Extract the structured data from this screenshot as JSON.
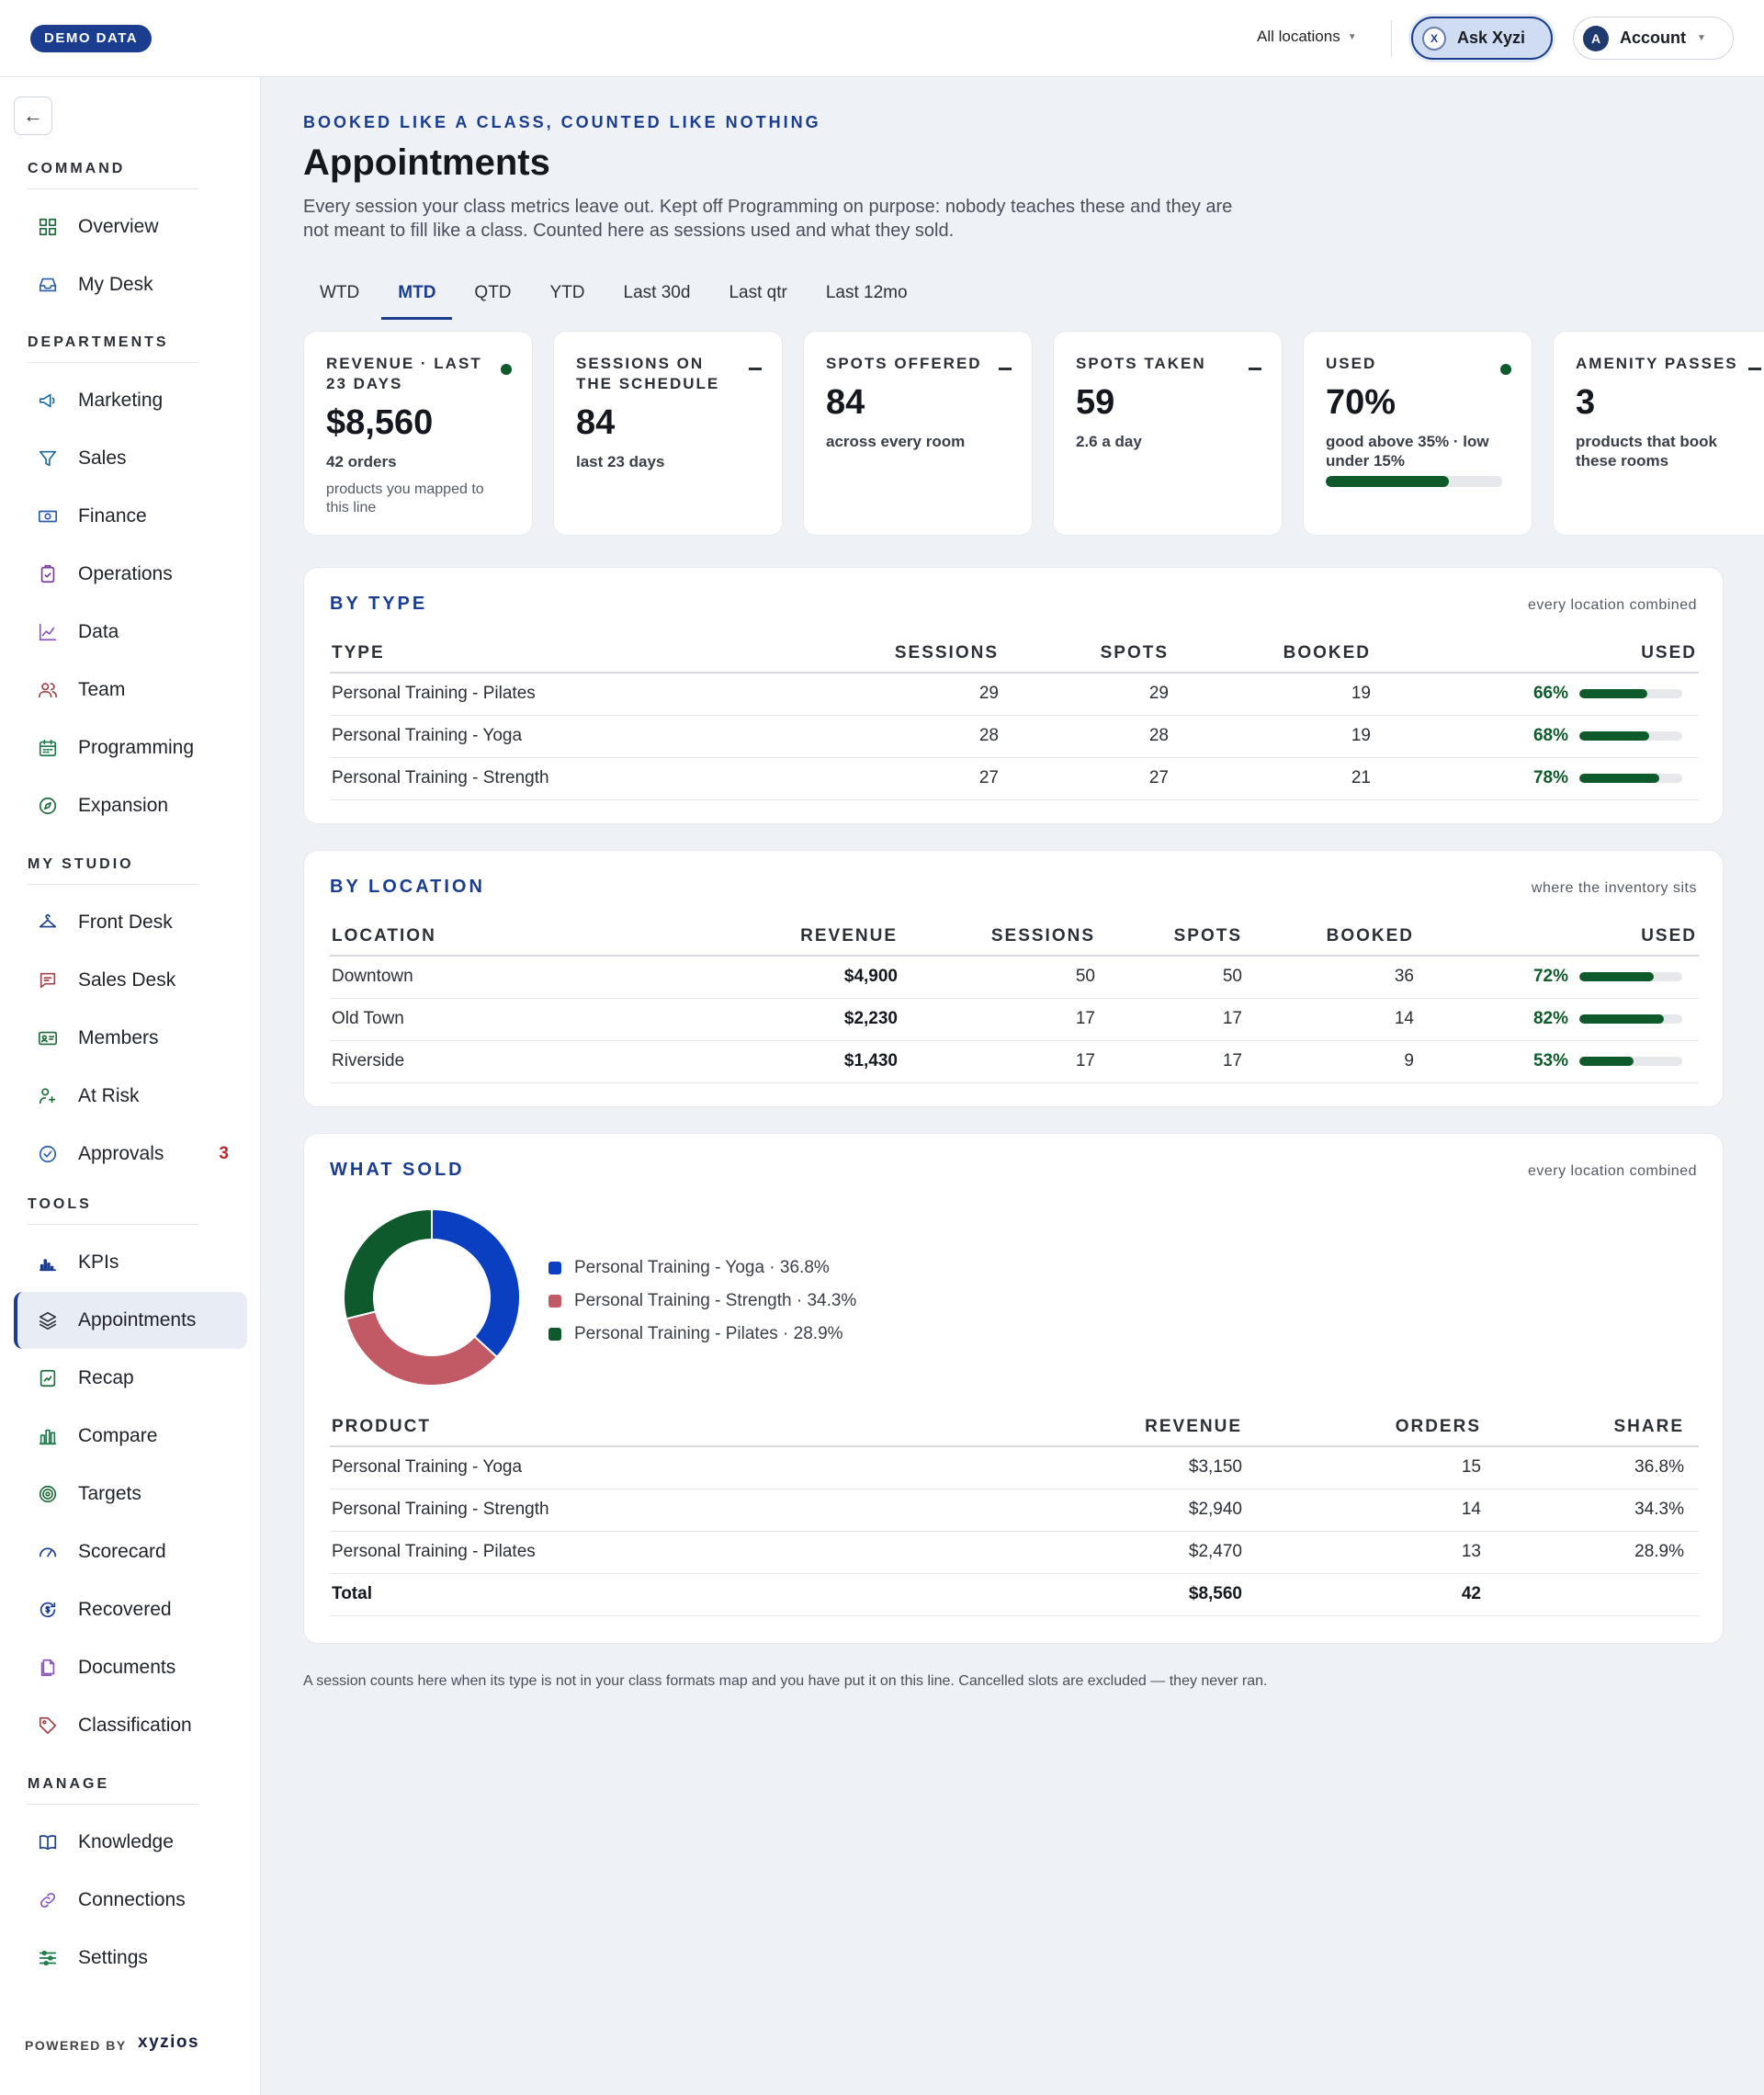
{
  "topbar": {
    "demo_badge": "DEMO DATA",
    "location_select": "All locations",
    "ask_label": "Ask Xyzi",
    "ask_icon_letter": "X",
    "account_label": "Account",
    "account_initial": "A"
  },
  "sidebar": {
    "collapse_icon": "arrow-left-icon",
    "sections": [
      {
        "label": "COMMAND",
        "items": [
          {
            "label": "Overview",
            "icon": "grid-icon"
          },
          {
            "label": "My Desk",
            "icon": "inbox-icon"
          }
        ]
      },
      {
        "label": "DEPARTMENTS",
        "items": [
          {
            "label": "Marketing",
            "icon": "megaphone-icon"
          },
          {
            "label": "Sales",
            "icon": "filter-icon"
          },
          {
            "label": "Finance",
            "icon": "cash-icon"
          },
          {
            "label": "Operations",
            "icon": "clipboard-icon"
          },
          {
            "label": "Data",
            "icon": "line-chart-icon"
          },
          {
            "label": "Team",
            "icon": "people-icon"
          },
          {
            "label": "Programming",
            "icon": "calendar-icon"
          },
          {
            "label": "Expansion",
            "icon": "compass-icon"
          }
        ]
      },
      {
        "label": "MY STUDIO",
        "items": [
          {
            "label": "Front Desk",
            "icon": "hanger-icon"
          },
          {
            "label": "Sales Desk",
            "icon": "chat-icon"
          },
          {
            "label": "Members",
            "icon": "id-card-icon"
          },
          {
            "label": "At Risk",
            "icon": "user-alert-icon"
          },
          {
            "label": "Approvals",
            "icon": "check-circle-icon",
            "badge": "3"
          }
        ]
      },
      {
        "label": "TOOLS",
        "items": [
          {
            "label": "KPIs",
            "icon": "bar-chart-icon"
          },
          {
            "label": "Appointments",
            "icon": "layers-icon",
            "active": true
          },
          {
            "label": "Recap",
            "icon": "trend-icon"
          },
          {
            "label": "Compare",
            "icon": "columns-icon"
          },
          {
            "label": "Targets",
            "icon": "target-icon"
          },
          {
            "label": "Scorecard",
            "icon": "gauge-icon"
          },
          {
            "label": "Recovered",
            "icon": "refresh-dollar-icon"
          },
          {
            "label": "Documents",
            "icon": "document-icon"
          },
          {
            "label": "Classification",
            "icon": "tag-icon"
          }
        ]
      },
      {
        "label": "MANAGE",
        "items": [
          {
            "label": "Knowledge",
            "icon": "book-icon"
          },
          {
            "label": "Connections",
            "icon": "link-icon"
          },
          {
            "label": "Settings",
            "icon": "sliders-icon"
          }
        ]
      }
    ],
    "powered_by": "POWERED BY",
    "brand": "xyzios"
  },
  "page": {
    "eyebrow": "BOOKED LIKE A CLASS, COUNTED LIKE NOTHING",
    "title": "Appointments",
    "description": "Every session your class metrics leave out. Kept off Programming on purpose: nobody teaches these and they are not meant to fill like a class. Counted here as sessions used and what they sold.",
    "tabs": [
      {
        "label": "WTD",
        "active": false
      },
      {
        "label": "MTD",
        "active": true
      },
      {
        "label": "QTD",
        "active": false
      },
      {
        "label": "YTD",
        "active": false
      },
      {
        "label": "Last 30d",
        "active": false
      },
      {
        "label": "Last qtr",
        "active": false
      },
      {
        "label": "Last 12mo",
        "active": false
      }
    ],
    "footnote": "A session counts here when its type is not in your class formats map and you have put it on this line. Cancelled slots are excluded — they never ran."
  },
  "kpis": [
    {
      "label": "REVENUE · LAST 23 DAYS",
      "status": "dot",
      "value": "$8,560",
      "sub": "42 orders",
      "note": "products you mapped to this line"
    },
    {
      "label": "SESSIONS ON THE SCHEDULE",
      "status": "dash",
      "value": "84",
      "sub": "last 23 days"
    },
    {
      "label": "SPOTS OFFERED",
      "status": "dash",
      "value": "84",
      "sub": "across every room"
    },
    {
      "label": "SPOTS TAKEN",
      "status": "dash",
      "value": "59",
      "sub": "2.6 a day"
    },
    {
      "label": "USED",
      "status": "dot",
      "value": "70%",
      "sub": "good above 35% · low under 15%",
      "bar": 0.7
    },
    {
      "label": "AMENITY PASSES",
      "status": "dash",
      "value": "3",
      "sub": "products that book these rooms"
    }
  ],
  "by_type": {
    "title": "BY TYPE",
    "note": "every location combined",
    "headers": [
      "TYPE",
      "SESSIONS",
      "SPOTS",
      "BOOKED",
      "USED"
    ],
    "rows": [
      {
        "type": "Personal Training - Pilates",
        "sessions": "29",
        "spots": "29",
        "booked": "19",
        "used": "66%",
        "used_frac": 0.66
      },
      {
        "type": "Personal Training - Yoga",
        "sessions": "28",
        "spots": "28",
        "booked": "19",
        "used": "68%",
        "used_frac": 0.68
      },
      {
        "type": "Personal Training - Strength",
        "sessions": "27",
        "spots": "27",
        "booked": "21",
        "used": "78%",
        "used_frac": 0.78
      }
    ]
  },
  "by_location": {
    "title": "BY LOCATION",
    "note": "where the inventory sits",
    "headers": [
      "LOCATION",
      "REVENUE",
      "SESSIONS",
      "SPOTS",
      "BOOKED",
      "USED"
    ],
    "rows": [
      {
        "location": "Downtown",
        "revenue": "$4,900",
        "sessions": "50",
        "spots": "50",
        "booked": "36",
        "used": "72%",
        "used_frac": 0.72
      },
      {
        "location": "Old Town",
        "revenue": "$2,230",
        "sessions": "17",
        "spots": "17",
        "booked": "14",
        "used": "82%",
        "used_frac": 0.82
      },
      {
        "location": "Riverside",
        "revenue": "$1,430",
        "sessions": "17",
        "spots": "17",
        "booked": "9",
        "used": "53%",
        "used_frac": 0.53
      }
    ]
  },
  "what_sold": {
    "title": "WHAT SOLD",
    "note": "every location combined",
    "headers": [
      "PRODUCT",
      "REVENUE",
      "ORDERS",
      "SHARE"
    ],
    "rows": [
      {
        "product": "Personal Training - Yoga",
        "revenue": "$3,150",
        "orders": "15",
        "share": "36.8%"
      },
      {
        "product": "Personal Training - Strength",
        "revenue": "$2,940",
        "orders": "14",
        "share": "34.3%"
      },
      {
        "product": "Personal Training - Pilates",
        "revenue": "$2,470",
        "orders": "13",
        "share": "28.9%"
      }
    ],
    "total": {
      "label": "Total",
      "revenue": "$8,560",
      "orders": "42"
    }
  },
  "chart_data": {
    "type": "pie",
    "categories": [
      "Personal Training - Yoga",
      "Personal Training - Strength",
      "Personal Training - Pilates"
    ],
    "values": [
      36.8,
      34.3,
      28.9
    ],
    "labels": [
      "Personal Training - Yoga · 36.8%",
      "Personal Training - Strength · 34.3%",
      "Personal Training - Pilates · 28.9%"
    ],
    "colors": [
      "#0a3fc2",
      "#c25a66",
      "#0e5a2c"
    ],
    "donut": true,
    "legend": "right"
  }
}
